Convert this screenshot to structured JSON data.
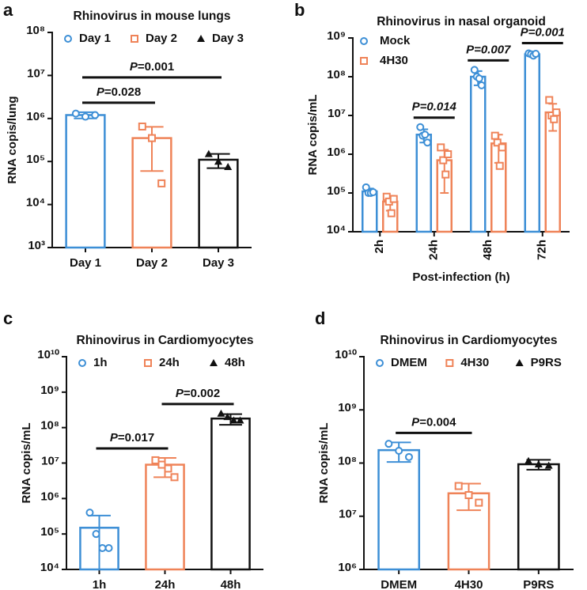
{
  "chart_data": [
    {
      "type": "bar",
      "panel": "a",
      "title": "Rhinovirus in mouse lungs",
      "y_label": "RNA copis/lung",
      "log_scale": true,
      "legend": "top",
      "categories": [
        "Day 1",
        "Day 2",
        "Day 3"
      ],
      "colors": [
        "#3d8fd6",
        "#ef8358",
        "#111111"
      ],
      "markers": [
        "circle",
        "square",
        "triangle"
      ],
      "values": [
        1200000,
        350000,
        110000
      ],
      "errors": [
        200000,
        290000,
        40000
      ],
      "points": [
        [
          1300000,
          1100000,
          1200000
        ],
        [
          650000,
          350000,
          31000
        ],
        [
          150000,
          100000,
          75000
        ]
      ],
      "ylim": [
        1000,
        100000000
      ],
      "yticks": [
        {
          "value": 1000,
          "label": "10³"
        },
        {
          "value": 10000,
          "label": "10⁴"
        },
        {
          "value": 100000,
          "label": "10⁵"
        },
        {
          "value": 1000000,
          "label": "10⁶"
        },
        {
          "value": 10000000,
          "label": "10⁷"
        },
        {
          "value": 100000000,
          "label": "10⁸"
        }
      ],
      "annotations": [
        {
          "text": "P=0.028",
          "between": [
            "Day 1",
            "Day 2"
          ]
        },
        {
          "text": "P=0.001",
          "between": [
            "Day 1",
            "Day 3"
          ]
        }
      ]
    },
    {
      "type": "grouped_bar",
      "panel": "b",
      "title": "Rhinovirus in nasal organoid",
      "y_label": "RNA copis/mL",
      "x_label": "Post-infection (h)",
      "log_scale": true,
      "legend": "upper left",
      "categories": [
        "2h",
        "24h",
        "48h",
        "72h"
      ],
      "series": [
        {
          "name": "Mock",
          "color": "#3d8fd6",
          "marker": "circle",
          "values": [
            110000,
            3200000,
            100000000,
            380000000
          ],
          "errors": [
            20000,
            1200000,
            40000000,
            40000000
          ],
          "points": [
            [
              140000,
              100000,
              100000,
              105000
            ],
            [
              5000000,
              3000000,
              3200000,
              2000000
            ],
            [
              150000000,
              100000000,
              90000000,
              60000000
            ],
            [
              400000000,
              380000000,
              350000000,
              390000000
            ]
          ]
        },
        {
          "name": "4H30",
          "color": "#ef8358",
          "marker": "square",
          "values": [
            60000,
            700000,
            1900000,
            12000000
          ],
          "errors": [
            25000,
            600000,
            1300000,
            8000000
          ],
          "points": [
            [
              80000,
              60000,
              30000,
              70000
            ],
            [
              1500000,
              700000,
              300000,
              1000000
            ],
            [
              3000000,
              2000000,
              500000,
              1500000
            ],
            [
              25000000,
              10000000,
              8000000,
              12000000
            ]
          ]
        }
      ],
      "ylim": [
        10000,
        1000000000
      ],
      "yticks": [
        {
          "value": 10000,
          "label": "10⁴"
        },
        {
          "value": 100000,
          "label": "10⁵"
        },
        {
          "value": 1000000,
          "label": "10⁶"
        },
        {
          "value": 10000000,
          "label": "10⁷"
        },
        {
          "value": 100000000,
          "label": "10⁸"
        },
        {
          "value": 1000000000,
          "label": "10⁹"
        }
      ],
      "annotations": [
        {
          "text": "P=0.014",
          "category": "24h"
        },
        {
          "text": "P=0.007",
          "category": "48h"
        },
        {
          "text": "P=0.001",
          "category": "72h"
        }
      ]
    },
    {
      "type": "bar",
      "panel": "c",
      "title": "Rhinovirus in Cardiomyocytes",
      "y_label": "RNA copis/mL",
      "log_scale": true,
      "legend": "top",
      "categories": [
        "1h",
        "24h",
        "48h"
      ],
      "colors": [
        "#3d8fd6",
        "#ef8358",
        "#111111"
      ],
      "markers": [
        "circle",
        "square",
        "triangle"
      ],
      "values": [
        150000,
        9000000,
        180000000
      ],
      "errors": [
        180000,
        5000000,
        60000000
      ],
      "points": [
        [
          400000,
          100000,
          40000,
          40000
        ],
        [
          12000000,
          9000000,
          7000000,
          4000000
        ],
        [
          250000000,
          200000000,
          160000000,
          160000000
        ]
      ],
      "ylim": [
        10000,
        10000000000
      ],
      "yticks": [
        {
          "value": 10000,
          "label": "10⁴"
        },
        {
          "value": 100000,
          "label": "10⁵"
        },
        {
          "value": 1000000,
          "label": "10⁶"
        },
        {
          "value": 10000000,
          "label": "10⁷"
        },
        {
          "value": 100000000,
          "label": "10⁸"
        },
        {
          "value": 1000000000,
          "label": "10⁹"
        },
        {
          "value": 10000000000,
          "label": "10¹⁰"
        }
      ],
      "annotations": [
        {
          "text": "P=0.017",
          "between": [
            "1h",
            "24h"
          ]
        },
        {
          "text": "P=0.002",
          "between": [
            "24h",
            "48h"
          ]
        }
      ]
    },
    {
      "type": "bar",
      "panel": "d",
      "title": "Rhinovirus in Cardiomyocytes",
      "y_label": "RNA copis/mL",
      "log_scale": true,
      "legend": "top",
      "categories": [
        "DMEM",
        "4H30",
        "P9RS"
      ],
      "colors": [
        "#3d8fd6",
        "#ef8358",
        "#111111"
      ],
      "markers": [
        "circle",
        "square",
        "triangle"
      ],
      "values": [
        175000000,
        27000000,
        95000000
      ],
      "errors": [
        70000000,
        14000000,
        20000000
      ],
      "points": [
        [
          230000000,
          170000000,
          130000000
        ],
        [
          37000000,
          25000000,
          18000000
        ],
        [
          110000000,
          95000000,
          90000000
        ]
      ],
      "ylim": [
        1000000,
        10000000000
      ],
      "yticks": [
        {
          "value": 1000000,
          "label": "10⁶"
        },
        {
          "value": 10000000,
          "label": "10⁷"
        },
        {
          "value": 100000000,
          "label": "10⁸"
        },
        {
          "value": 1000000000,
          "label": "10⁹"
        },
        {
          "value": 10000000000,
          "label": "10¹⁰"
        }
      ],
      "annotations": [
        {
          "text": "P=0.004",
          "between": [
            "DMEM",
            "4H30"
          ]
        }
      ]
    }
  ]
}
